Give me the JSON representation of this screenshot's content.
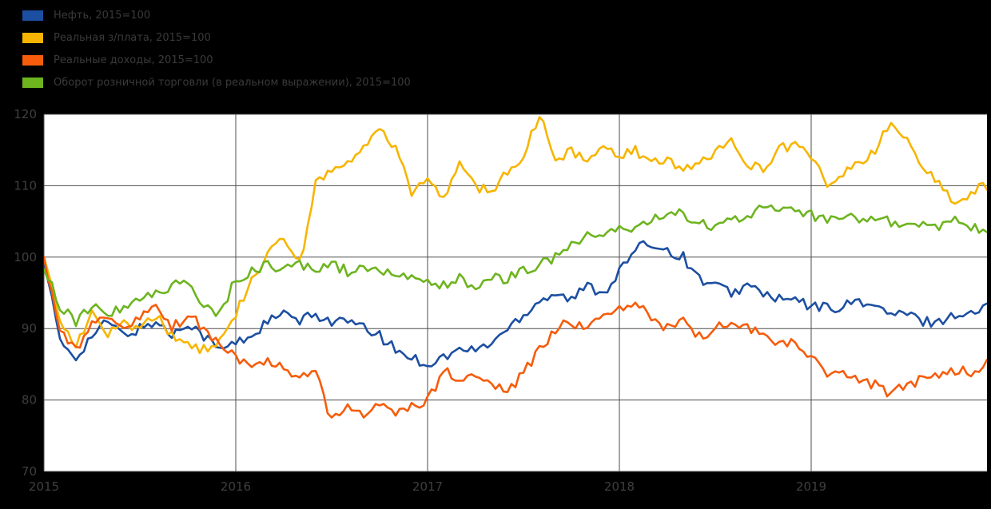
{
  "page": {
    "background_color": "#000000",
    "plot_background_color": "#ffffff",
    "gridline_color": "#4d4d4d",
    "tick_label_color": "#3f3f3f"
  },
  "chart_data": {
    "type": "line",
    "title": "",
    "xlabel": "",
    "ylabel": "",
    "x_unit": "month",
    "x_start": "2015-01",
    "x_ticks": [
      "2015",
      "2016",
      "2017",
      "2018",
      "2019"
    ],
    "y_ticks": [
      70,
      80,
      90,
      100,
      110,
      120
    ],
    "ylim": [
      70,
      122
    ],
    "grid": true,
    "legend_position": "top-left",
    "series": [
      {
        "name": "Нефть, 2015=100",
        "color": "#1c4fa1",
        "values": [
          100,
          88,
          86,
          89,
          91,
          89,
          90,
          91,
          89,
          91,
          89,
          87,
          88,
          89,
          91,
          92,
          91,
          92,
          91,
          91,
          90,
          89,
          87,
          86,
          85,
          86,
          87,
          87,
          88,
          90,
          92,
          94,
          95,
          94,
          96,
          95,
          98,
          101,
          102,
          101,
          100,
          97,
          96,
          95,
          96,
          95,
          94,
          94,
          93,
          93,
          93,
          94,
          93,
          92,
          92,
          91,
          91,
          92,
          92,
          93
        ]
      },
      {
        "name": "Реальная з/плата, 2015=100",
        "color": "#f7b500",
        "values": [
          100,
          91,
          88,
          92,
          89,
          91,
          90,
          92,
          89,
          88,
          87,
          88,
          92,
          97,
          100,
          103,
          99,
          110,
          112,
          113,
          115,
          118,
          115,
          109,
          111,
          108,
          113,
          110,
          109,
          112,
          114,
          120,
          113,
          115,
          113,
          115,
          114,
          115,
          113,
          114,
          112,
          113,
          115,
          116,
          113,
          112,
          115,
          116,
          114,
          110,
          112,
          113,
          115,
          119,
          116,
          113,
          110,
          108,
          109,
          110
        ]
      },
      {
        "name": "Реальные доходы, 2015=100",
        "color": "#f65c0c",
        "values": [
          100,
          90,
          87,
          91,
          92,
          90,
          92,
          93,
          90,
          92,
          90,
          88,
          86,
          84,
          86,
          84,
          83,
          84,
          77,
          79,
          78,
          79,
          78,
          79,
          80,
          84,
          83,
          84,
          82,
          81,
          84,
          87,
          90,
          91,
          90,
          92,
          93,
          94,
          91,
          90,
          91,
          89,
          90,
          91,
          90,
          89,
          88,
          88,
          86,
          84,
          84,
          83,
          82,
          81,
          82,
          83,
          83,
          84,
          84,
          85
        ]
      },
      {
        "name": "Оборот розничной торговли (в реальном выражении), 2015=100",
        "color": "#6db41f",
        "values": [
          99,
          93,
          91,
          93,
          92,
          93,
          94,
          95,
          96,
          96,
          93,
          92,
          97,
          98,
          99,
          98,
          99,
          98,
          99,
          98,
          99,
          98,
          98,
          97,
          97,
          96,
          97,
          96,
          97,
          97,
          98,
          99,
          100,
          102,
          103,
          103,
          104,
          104,
          105,
          106,
          106,
          105,
          104,
          105,
          106,
          107,
          107,
          106,
          106,
          105,
          106,
          105,
          105,
          105,
          104,
          105,
          104,
          105,
          104,
          104
        ]
      }
    ]
  }
}
